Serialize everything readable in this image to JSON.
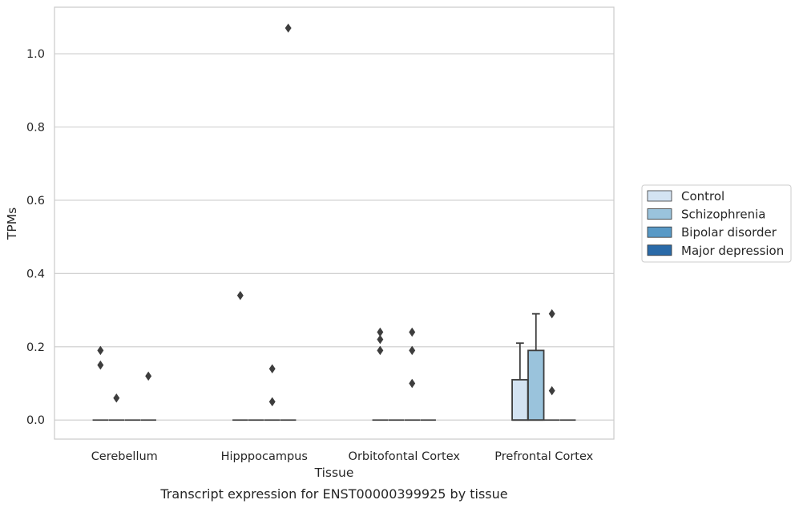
{
  "chart_data": {
    "type": "box",
    "title": "",
    "caption": "Transcript expression for ENST00000399925 by tissue",
    "xlabel": "Tissue",
    "ylabel": "TPMs",
    "ylim": [
      -0.052,
      1.127
    ],
    "yticks": [
      0.0,
      0.2,
      0.4,
      0.6,
      0.8,
      1.0
    ],
    "ytick_labels": [
      "0.0",
      "0.2",
      "0.4",
      "0.6",
      "0.8",
      "1.0"
    ],
    "grid": "horizontal",
    "legend_position": "right",
    "categories": [
      "Cerebellum",
      "Hipppocampus",
      "Orbitofontal Cortex",
      "Prefrontal Cortex"
    ],
    "series": [
      {
        "name": "Control",
        "color": "#d3e3f2",
        "boxes": [
          {
            "q1": 0,
            "median": 0,
            "q3": 0,
            "whislo": 0,
            "whishi": 0,
            "fliers": [
              0.19,
              0.15
            ]
          },
          {
            "q1": 0,
            "median": 0,
            "q3": 0,
            "whislo": 0,
            "whishi": 0,
            "fliers": [
              0.34
            ]
          },
          {
            "q1": 0,
            "median": 0,
            "q3": 0,
            "whislo": 0,
            "whishi": 0,
            "fliers": [
              0.24,
              0.22,
              0.19
            ]
          },
          {
            "q1": 0,
            "median": 0,
            "q3": 0.11,
            "whislo": 0,
            "whishi": 0.21,
            "fliers": []
          }
        ]
      },
      {
        "name": "Schizophrenia",
        "color": "#9ac3dc",
        "boxes": [
          {
            "q1": 0,
            "median": 0,
            "q3": 0,
            "whislo": 0,
            "whishi": 0,
            "fliers": [
              0.06
            ]
          },
          {
            "q1": 0,
            "median": 0,
            "q3": 0,
            "whislo": 0,
            "whishi": 0,
            "fliers": []
          },
          {
            "q1": 0,
            "median": 0,
            "q3": 0,
            "whislo": 0,
            "whishi": 0,
            "fliers": []
          },
          {
            "q1": 0,
            "median": 0,
            "q3": 0.19,
            "whislo": 0,
            "whishi": 0.29,
            "fliers": []
          }
        ]
      },
      {
        "name": "Bipolar disorder",
        "color": "#5899c6",
        "boxes": [
          {
            "q1": 0,
            "median": 0,
            "q3": 0,
            "whislo": 0,
            "whishi": 0,
            "fliers": []
          },
          {
            "q1": 0,
            "median": 0,
            "q3": 0,
            "whislo": 0,
            "whishi": 0,
            "fliers": [
              0.14,
              0.05
            ]
          },
          {
            "q1": 0,
            "median": 0,
            "q3": 0,
            "whislo": 0,
            "whishi": 0,
            "fliers": [
              0.24,
              0.19,
              0.1
            ]
          },
          {
            "q1": 0,
            "median": 0,
            "q3": 0,
            "whislo": 0,
            "whishi": 0,
            "fliers": [
              0.29,
              0.08
            ]
          }
        ]
      },
      {
        "name": "Major depression",
        "color": "#2a6aa8",
        "boxes": [
          {
            "q1": 0,
            "median": 0,
            "q3": 0,
            "whislo": 0,
            "whishi": 0,
            "fliers": [
              0.12
            ]
          },
          {
            "q1": 0,
            "median": 0,
            "q3": 0,
            "whislo": 0,
            "whishi": 0,
            "fliers": [
              1.07
            ]
          },
          {
            "q1": 0,
            "median": 0,
            "q3": 0,
            "whislo": 0,
            "whishi": 0,
            "fliers": []
          },
          {
            "q1": 0,
            "median": 0,
            "q3": 0,
            "whislo": 0,
            "whishi": 0,
            "fliers": []
          }
        ]
      }
    ]
  }
}
